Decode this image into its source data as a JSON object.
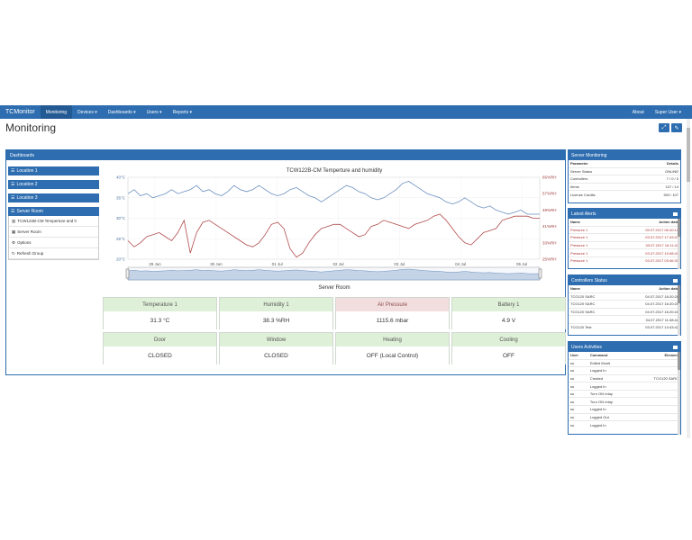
{
  "nav": {
    "brand": "TCMonitor",
    "items": [
      "Monitoring",
      "Devices ▾",
      "Dashboards ▾",
      "Users ▾",
      "Reports ▾"
    ],
    "right": [
      "About",
      "Super User ▾"
    ]
  },
  "page": {
    "title": "Monitoring"
  },
  "dashboards": {
    "title": "Dashboards",
    "locations": [
      "Location 1",
      "Location 2",
      "Location 3",
      "Server Room"
    ],
    "server_room_items": [
      {
        "icon": "chart-icon",
        "label": "TCW122B-CM Temperture and h"
      },
      {
        "icon": "table-icon",
        "label": "Server Room"
      },
      {
        "icon": "cogs-icon",
        "label": "Options"
      },
      {
        "icon": "refresh-icon",
        "label": "Refresh Group"
      }
    ]
  },
  "chart_data": {
    "type": "line",
    "title": "TCW122B-CM Temperture and humidity",
    "x_ticks": [
      "29 Jun",
      "30 Jun",
      "01 Jul",
      "02 Jul",
      "03 Jul",
      "04 Jul",
      "05 Jul"
    ],
    "y_left": {
      "ticks": [
        "20°C",
        "25°C",
        "30°C",
        "35°C",
        "40°C"
      ],
      "ylim": [
        20,
        40
      ]
    },
    "y_right": {
      "ticks": [
        "25%RH",
        "33%RH",
        "41%RH",
        "49%RH",
        "57%RH",
        "65%RH"
      ],
      "ylim": [
        25,
        65
      ]
    },
    "series": [
      {
        "color": "#6a8fbf",
        "axis": "left",
        "values": [
          36,
          37,
          35.5,
          36,
          35,
          35.5,
          36,
          37,
          36,
          36.5,
          37,
          38,
          36.5,
          37,
          36,
          35.5,
          36.5,
          38,
          37,
          36.5,
          37,
          38,
          37,
          36,
          35.5,
          36,
          37,
          37.5,
          36.5,
          35.5,
          35,
          34,
          35,
          36,
          37,
          38,
          37.5,
          36.5,
          36,
          35,
          34.5,
          35,
          36,
          37,
          38.5,
          39,
          38,
          37,
          36,
          35.5,
          35,
          34,
          33.5,
          34,
          35,
          34,
          33,
          32.5,
          33,
          32,
          31.5,
          31,
          31.5,
          32,
          31,
          31,
          31
        ]
      },
      {
        "color": "#b04a4a",
        "axis": "right",
        "values": [
          34,
          31,
          33,
          36,
          37,
          38,
          36,
          34,
          38,
          44,
          28,
          38,
          43,
          44,
          42,
          40,
          38,
          36,
          34,
          32,
          31,
          33,
          37,
          42,
          43,
          40,
          30,
          26,
          28,
          33,
          37,
          40,
          41,
          42,
          42,
          40,
          38,
          36,
          37,
          41,
          42,
          44,
          43,
          42,
          41,
          40,
          42,
          43,
          44,
          46,
          47,
          44,
          40,
          36,
          33,
          32,
          35,
          38,
          39,
          40,
          44,
          45,
          46,
          46,
          46,
          45,
          45
        ]
      }
    ]
  },
  "sensors": {
    "group_title": "Server Room",
    "tiles": [
      {
        "label": "Temperature 1",
        "value": "31.3 °C",
        "alarm": false
      },
      {
        "label": "Humidity 1",
        "value": "38.3 %RH",
        "alarm": false
      },
      {
        "label": "Air Pressure",
        "value": "1115.6 mbar",
        "alarm": true
      },
      {
        "label": "Battery 1",
        "value": "4.9 V",
        "alarm": false
      },
      {
        "label": "Door",
        "value": "CLOSED",
        "alarm": false
      },
      {
        "label": "Window",
        "value": "CLOSED",
        "alarm": false
      },
      {
        "label": "Heating",
        "value": "OFF (Local Control)",
        "alarm": false
      },
      {
        "label": "Cooling",
        "value": "OFF",
        "alarm": false
      }
    ]
  },
  "server_monitoring": {
    "title": "Server Monitoring",
    "headers": [
      "Parameter",
      "Details"
    ],
    "rows": [
      [
        "Server Status",
        "ONLINE"
      ],
      [
        "Controllers",
        "7 / 0 / 0"
      ],
      [
        "Items",
        "107 / 14"
      ],
      [
        "License Credits",
        "393 / 107"
      ]
    ]
  },
  "latest_alerts": {
    "title": "Latest Alerts",
    "headers": [
      "Name",
      "Action date"
    ],
    "rows": [
      [
        "Pressure 1",
        "05.07.2017 06:40:14"
      ],
      [
        "Pressure 1",
        "03.07.2017 17:43:43"
      ],
      [
        "Pressure 1",
        "03.07.2017 16:11:42"
      ],
      [
        "Pressure 1",
        "03.07.2017 10:08:41"
      ],
      [
        "Pressure 1",
        "03.07.2017 03:46:31"
      ]
    ]
  },
  "controllers_status": {
    "title": "Controllers Status",
    "headers": [
      "Name",
      "Action date"
    ],
    "rows": [
      [
        "TCG120 SARC",
        "04.07.2017 16:20:28"
      ],
      [
        "TCG120 SARC",
        "04.07.2017 16:20:28"
      ],
      [
        "TCG120 SARC",
        "04.07.2017 16:20:28"
      ],
      [
        "",
        "04.07.2017 11:08:42"
      ],
      [
        "TCG120 Test",
        "03.07.2017 14:43:42"
      ]
    ]
  },
  "users_activities": {
    "title": "Users Activities",
    "headers": [
      "User",
      "Command",
      "Element"
    ],
    "rows": [
      [
        "su",
        "Edited Monit",
        ""
      ],
      [
        "su",
        "Logged In",
        ""
      ],
      [
        "su",
        "Created",
        "TCG120 SARC"
      ],
      [
        "su",
        "Logged In",
        ""
      ],
      [
        "su",
        "Turn ON relay",
        ""
      ],
      [
        "su",
        "Turn ON relay",
        ""
      ],
      [
        "su",
        "Logged In",
        ""
      ],
      [
        "su",
        "Logged Out",
        ""
      ],
      [
        "su",
        "Logged In",
        ""
      ]
    ]
  }
}
